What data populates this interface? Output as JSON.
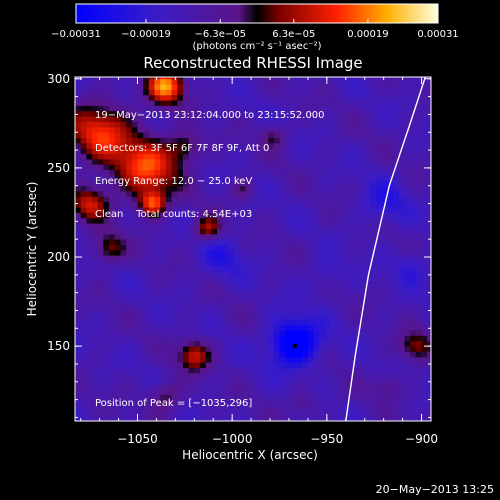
{
  "chart_data": {
    "type": "heatmap",
    "title": "Reconstructed RHESSI Image",
    "xlabel": "Heliocentric X (arcsec)",
    "ylabel": "Heliocentric Y (arcsec)",
    "xlim": [
      -1083,
      -895
    ],
    "ylim": [
      108,
      301
    ],
    "x_ticks": [
      -1050,
      -1000,
      -950,
      -900
    ],
    "x_tick_labels": [
      "−1050",
      "−1000",
      "−950",
      "−900"
    ],
    "y_ticks": [
      150,
      200,
      250,
      300
    ],
    "y_tick_labels": [
      "150",
      "200",
      "250",
      "300"
    ],
    "colorbar": {
      "range": [
        -0.00031,
        0.00031
      ],
      "ticks": [
        -0.00031,
        -0.00019,
        -6.3e-05,
        6.3e-05,
        0.00019,
        0.00031
      ],
      "tick_labels": [
        "−0.00031",
        "−0.00019",
        "−6.3e−05",
        "6.3e−05",
        "0.00019",
        "0.00031"
      ],
      "unit_label": "(photons cm⁻² s⁻¹ asec⁻²)"
    },
    "info_lines": [
      "19−May−2013 23:12:04.000 to 23:15:52.000",
      "Detectors: 3F 5F 6F 7F 8F 9F, Att 0",
      "Energy Range: 12.0 − 25.0 keV",
      "Clean    Total counts: 4.54E+03"
    ],
    "peak_label": "Position of Peak = [−1035,296]",
    "peak": {
      "x": -1035,
      "y": 296
    },
    "min_marker": {
      "x": -967,
      "y": 150
    },
    "limb_curve": [
      {
        "x": -940,
        "y": 108
      },
      {
        "x": -935,
        "y": 145
      },
      {
        "x": -928,
        "y": 190
      },
      {
        "x": -917,
        "y": 240
      },
      {
        "x": -906,
        "y": 275
      },
      {
        "x": -898,
        "y": 301
      }
    ],
    "features": [
      {
        "x": -1045,
        "y": 250,
        "v": 0.00026,
        "s": 12
      },
      {
        "x": -1070,
        "y": 270,
        "v": 0.00024,
        "s": 12
      },
      {
        "x": -1035,
        "y": 296,
        "v": 0.00031,
        "s": 7
      },
      {
        "x": -1042,
        "y": 230,
        "v": 0.00025,
        "s": 5
      },
      {
        "x": -1075,
        "y": 230,
        "v": 0.0002,
        "s": 7
      },
      {
        "x": -1065,
        "y": 205,
        "v": 0.00016,
        "s": 6
      },
      {
        "x": -1013,
        "y": 216,
        "v": 0.00019,
        "s": 5
      },
      {
        "x": -1020,
        "y": 145,
        "v": 0.00021,
        "s": 6
      },
      {
        "x": -1035,
        "y": 122,
        "v": 0.00013,
        "s": 6
      },
      {
        "x": -1025,
        "y": 262,
        "v": 0.00014,
        "s": 6
      },
      {
        "x": -978,
        "y": 268,
        "v": 0.00011,
        "s": 5
      },
      {
        "x": -995,
        "y": 238,
        "v": 0.0001,
        "s": 4
      },
      {
        "x": -903,
        "y": 150,
        "v": 0.00016,
        "s": 6
      },
      {
        "x": -918,
        "y": 128,
        "v": 8e-05,
        "s": 5
      },
      {
        "x": -963,
        "y": 118,
        "v": 8e-05,
        "s": 5
      },
      {
        "x": -967,
        "y": 152,
        "v": -0.00027,
        "s": 9
      },
      {
        "x": -1005,
        "y": 200,
        "v": -8e-05,
        "s": 9
      },
      {
        "x": -920,
        "y": 230,
        "v": -9e-05,
        "s": 9
      },
      {
        "x": -950,
        "y": 190,
        "v": -6e-05,
        "s": 7
      },
      {
        "x": -905,
        "y": 195,
        "v": -8e-05,
        "s": 7
      }
    ]
  },
  "footer_date": "20−May−2013 13:25"
}
